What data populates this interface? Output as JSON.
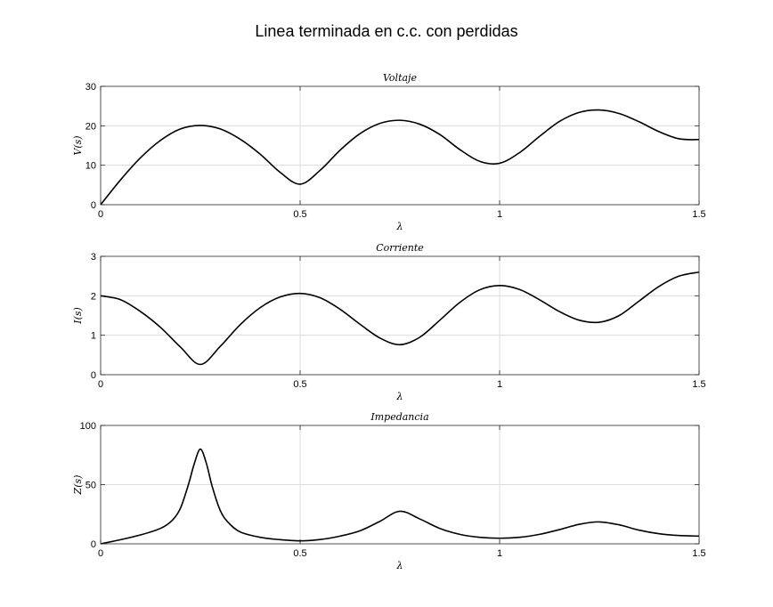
{
  "figure": {
    "title": "Linea terminada en c.c. con perdidas"
  },
  "chart_data": [
    {
      "type": "line",
      "title": "Voltaje",
      "xlabel": "λ",
      "ylabel": "V(s)",
      "xlim": [
        0,
        1.5
      ],
      "ylim": [
        0,
        30
      ],
      "xticks": [
        0,
        0.5,
        1,
        1.5
      ],
      "xtick_labels": [
        "0",
        "0.5",
        "1",
        "1.5"
      ],
      "yticks": [
        0,
        10,
        20,
        30
      ],
      "ytick_labels": [
        "0",
        "10",
        "20",
        "30"
      ],
      "grid": true,
      "series": [
        {
          "color": "#000000",
          "x": [
            0,
            0.05,
            0.1,
            0.15,
            0.2,
            0.25,
            0.3,
            0.35,
            0.4,
            0.45,
            0.5,
            0.55,
            0.6,
            0.65,
            0.7,
            0.75,
            0.8,
            0.85,
            0.9,
            0.95,
            1.0,
            1.05,
            1.1,
            1.15,
            1.2,
            1.25,
            1.3,
            1.35,
            1.4,
            1.45,
            1.5
          ],
          "y": [
            0,
            6.3,
            11.9,
            16.3,
            19.2,
            20.1,
            19.2,
            16.6,
            12.8,
            8.2,
            5.2,
            8.7,
            13.8,
            18.0,
            20.6,
            21.4,
            20.4,
            17.8,
            14.0,
            11.0,
            10.5,
            13.2,
            17.3,
            21.1,
            23.4,
            24.0,
            23.1,
            21.0,
            18.5,
            16.7,
            16.5
          ]
        }
      ]
    },
    {
      "type": "line",
      "title": "Corriente",
      "xlabel": "λ",
      "ylabel": "I(s)",
      "xlim": [
        0,
        1.5
      ],
      "ylim": [
        0,
        3
      ],
      "xticks": [
        0,
        0.5,
        1,
        1.5
      ],
      "xtick_labels": [
        "0",
        "0.5",
        "1",
        "1.5"
      ],
      "yticks": [
        0,
        1,
        2,
        3
      ],
      "ytick_labels": [
        "0",
        "1",
        "2",
        "3"
      ],
      "grid": true,
      "series": [
        {
          "color": "#000000",
          "x": [
            0,
            0.05,
            0.1,
            0.15,
            0.2,
            0.25,
            0.3,
            0.35,
            0.4,
            0.45,
            0.5,
            0.55,
            0.6,
            0.65,
            0.7,
            0.75,
            0.8,
            0.85,
            0.9,
            0.95,
            1.0,
            1.05,
            1.1,
            1.15,
            1.2,
            1.25,
            1.3,
            1.35,
            1.4,
            1.45,
            1.5
          ],
          "y": [
            2.0,
            1.9,
            1.6,
            1.2,
            0.7,
            0.26,
            0.72,
            1.27,
            1.7,
            1.97,
            2.06,
            1.95,
            1.66,
            1.28,
            0.93,
            0.76,
            0.95,
            1.38,
            1.83,
            2.15,
            2.26,
            2.16,
            1.9,
            1.6,
            1.38,
            1.33,
            1.5,
            1.87,
            2.24,
            2.5,
            2.6
          ]
        }
      ]
    },
    {
      "type": "line",
      "title": "Impedancia",
      "xlabel": "λ",
      "ylabel": "Z(s)",
      "xlim": [
        0,
        1.5
      ],
      "ylim": [
        0,
        100
      ],
      "xticks": [
        0,
        0.5,
        1,
        1.5
      ],
      "xtick_labels": [
        "0",
        "0.5",
        "1",
        "1.5"
      ],
      "yticks": [
        0,
        50,
        100
      ],
      "ytick_labels": [
        "0",
        "50",
        "100"
      ],
      "grid": true,
      "series": [
        {
          "color": "#000000",
          "x": [
            0,
            0.05,
            0.1,
            0.15,
            0.18,
            0.2,
            0.22,
            0.235,
            0.25,
            0.265,
            0.28,
            0.3,
            0.32,
            0.35,
            0.4,
            0.45,
            0.5,
            0.55,
            0.6,
            0.65,
            0.7,
            0.75,
            0.8,
            0.85,
            0.9,
            0.95,
            1.0,
            1.05,
            1.1,
            1.15,
            1.2,
            1.25,
            1.3,
            1.35,
            1.4,
            1.45,
            1.5
          ],
          "y": [
            0,
            3.5,
            7.5,
            13,
            20,
            30,
            50,
            68,
            80,
            68,
            48,
            28,
            18,
            10,
            5.5,
            3.5,
            2.5,
            3.6,
            6.5,
            11,
            19,
            27.5,
            21,
            13,
            8,
            5.5,
            4.7,
            5.5,
            8,
            12,
            16.5,
            18.5,
            16,
            11.5,
            8.5,
            7,
            6.5
          ]
        }
      ]
    }
  ]
}
